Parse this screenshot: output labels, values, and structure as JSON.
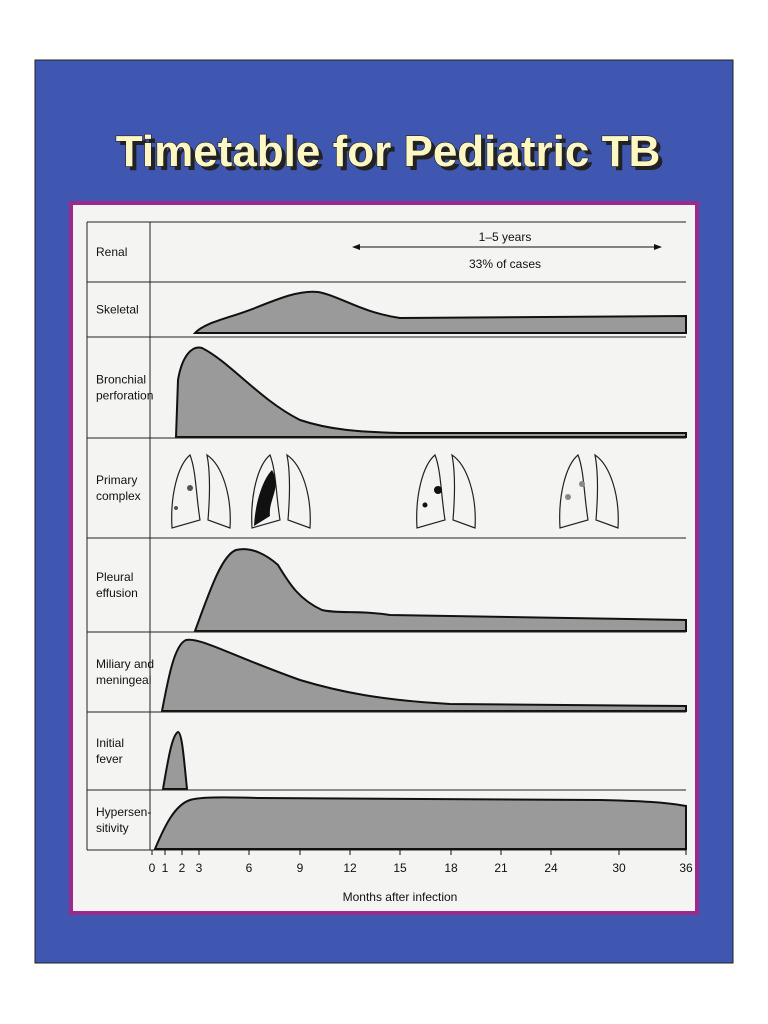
{
  "title": "Timetable for Pediatric TB",
  "rows": [
    [
      "Renal"
    ],
    [
      "Skeletal"
    ],
    [
      "Bronchial",
      "perforation"
    ],
    [
      "Primary",
      "complex"
    ],
    [
      "Pleural",
      "effusion"
    ],
    [
      "Miliary and",
      "meningeal"
    ],
    [
      "Initial",
      "fever"
    ],
    [
      "Hypersen-",
      "sitivity"
    ]
  ],
  "annotations": {
    "duration": "1–5 years",
    "share": "33% of cases"
  },
  "axis": {
    "ticks": [
      "0",
      "1",
      "2",
      "3",
      "6",
      "9",
      "12",
      "15",
      "18",
      "21",
      "24",
      "30",
      "36"
    ],
    "label": "Months after infection"
  }
}
